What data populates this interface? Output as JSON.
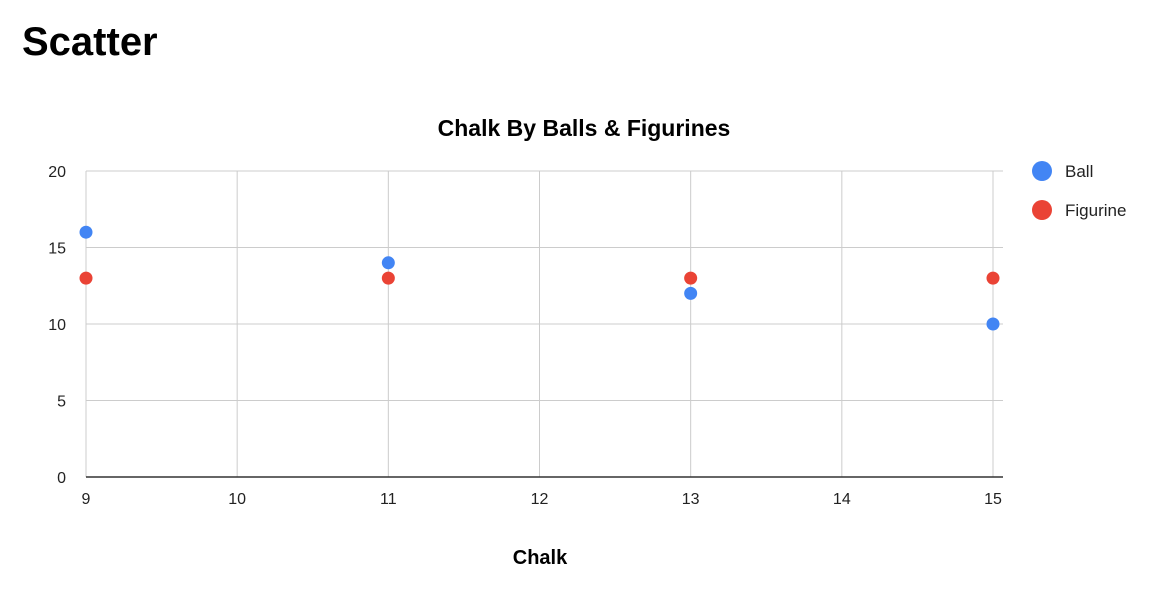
{
  "page": {
    "heading": "Scatter"
  },
  "chart_data": {
    "type": "scatter",
    "title": "Chalk By Balls & Figurines",
    "xlabel": "Chalk",
    "ylabel": "",
    "xlim": [
      9,
      15
    ],
    "ylim": [
      0,
      20
    ],
    "x_ticks": [
      9,
      10,
      11,
      12,
      13,
      14,
      15
    ],
    "y_ticks": [
      0,
      5,
      10,
      15,
      20
    ],
    "grid": true,
    "legend_position": "right",
    "series": [
      {
        "name": "Ball",
        "color": "#4285F4",
        "points": [
          {
            "x": 9,
            "y": 16
          },
          {
            "x": 11,
            "y": 14
          },
          {
            "x": 13,
            "y": 12
          },
          {
            "x": 15,
            "y": 10
          }
        ]
      },
      {
        "name": "Figurine",
        "color": "#EA4335",
        "points": [
          {
            "x": 9,
            "y": 13
          },
          {
            "x": 11,
            "y": 13
          },
          {
            "x": 13,
            "y": 13
          },
          {
            "x": 15,
            "y": 13
          }
        ]
      }
    ]
  }
}
